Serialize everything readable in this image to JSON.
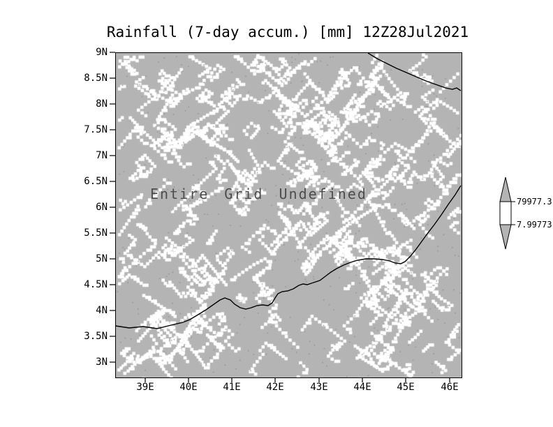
{
  "title": "Rainfall (7-day accum.) [mm] 12Z28Jul2021",
  "annotation": "Entire Grid Undefined",
  "chart_data": {
    "type": "heatmap",
    "title": "Rainfall (7-day accum.) [mm] 12Z28Jul2021",
    "status": "Entire Grid Undefined",
    "values": "undefined (entire grid missing / masked)",
    "x_ticks": [
      "39E",
      "40E",
      "41E",
      "42E",
      "43E",
      "44E",
      "45E",
      "46E"
    ],
    "y_ticks": [
      "9N",
      "8.5N",
      "8N",
      "7.5N",
      "7N",
      "6.5N",
      "6N",
      "5.5N",
      "5N",
      "4.5N",
      "4N",
      "3.5N",
      "3N"
    ],
    "xlabel": "",
    "ylabel": "",
    "x_range": [
      "39E",
      "46E"
    ],
    "y_range": [
      "3N",
      "9N"
    ],
    "grid": false,
    "legend_position": "right-colorbar",
    "colorbar_labels": [
      "79977.3",
      "7.99773"
    ],
    "colors": {
      "undefined_fill": "#b4b4b4",
      "speckle": "#ffffff",
      "coastline": "#000000",
      "annotation_text": "#4d4d4d"
    }
  }
}
